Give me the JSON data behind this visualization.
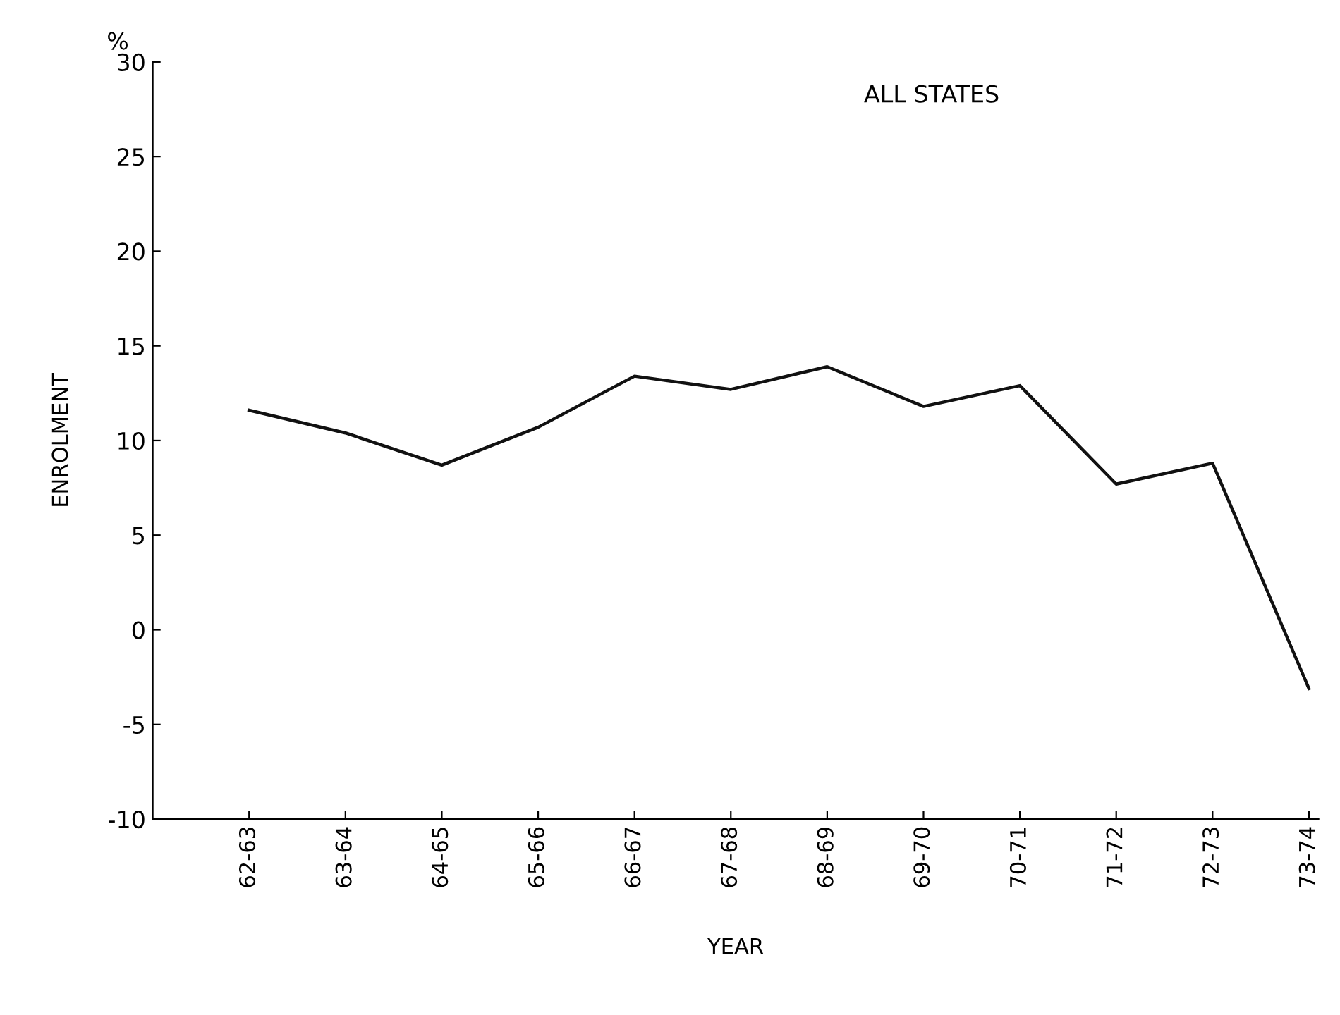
{
  "chart_data": {
    "type": "line",
    "title": "ALL STATES",
    "xlabel": "YEAR",
    "ylabel": "ENROLMENT",
    "annotations": [
      "%"
    ],
    "categories": [
      "62-63",
      "63-64",
      "64-65",
      "65-66",
      "66-67",
      "67-68",
      "68-69",
      "69-70",
      "70-71",
      "71-72",
      "72-73",
      "73-74"
    ],
    "series": [
      {
        "color": "#111111",
        "values": [
          11.6,
          10.4,
          8.7,
          10.7,
          13.4,
          12.7,
          13.9,
          11.8,
          12.9,
          7.7,
          8.8,
          -3.1
        ]
      }
    ],
    "ylim": [
      -10,
      30
    ],
    "yticks": [
      -10,
      -5,
      0,
      5,
      10,
      15,
      20,
      25,
      30
    ],
    "grid": false,
    "legend": false,
    "marker": "none",
    "line_style": "solid"
  }
}
